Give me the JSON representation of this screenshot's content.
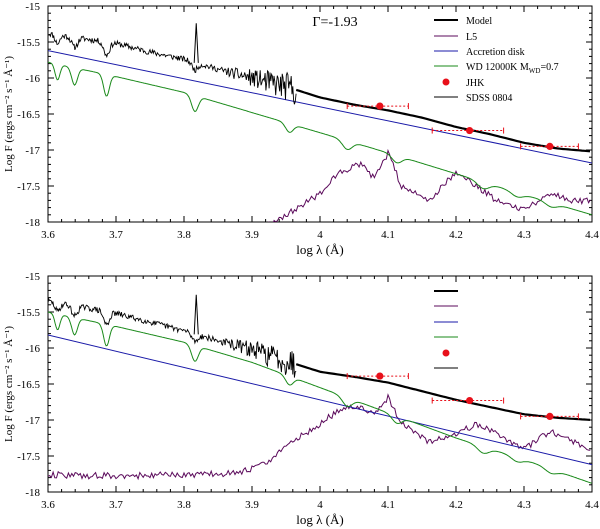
{
  "colors": {
    "model": "#000000",
    "l5": "#5b0a5b",
    "accretion": "#1a1aa8",
    "wd": "#1a8a1a",
    "jhk": "#e8101a",
    "sdss": "#000000",
    "errorbar": "#e8101a"
  },
  "chart_data": [
    {
      "type": "line",
      "panel": "top",
      "annotation": "Γ=-1.93",
      "xlabel": "log λ (Å)",
      "ylabel": "Log F (ergs cm⁻² s⁻¹ Å⁻¹)",
      "xlim": [
        3.6,
        4.4
      ],
      "ylim": [
        -18,
        -15
      ],
      "xticks": [
        "3.6",
        "3.7",
        "3.8",
        "3.9",
        "4",
        "4.1",
        "4.2",
        "4.3",
        "4.4"
      ],
      "yticks": [
        "-15",
        "-15.5",
        "-16",
        "-16.5",
        "-17",
        "-17.5",
        "-18"
      ],
      "legend_position": "top-right",
      "legend": [
        {
          "key": "model",
          "label": "Model"
        },
        {
          "key": "l5",
          "label": "L5"
        },
        {
          "key": "accretion",
          "label": "Accretion disk"
        },
        {
          "key": "wd",
          "label": "WD 12000K M",
          "sub": "WD",
          "suffix": "=0.7"
        },
        {
          "key": "jhk",
          "label": "JHK"
        },
        {
          "key": "sdss",
          "label": "SDSS 0804"
        }
      ],
      "series": {
        "accretion": {
          "name": "Accretion disk",
          "x": [
            3.6,
            4.4
          ],
          "y": [
            -15.62,
            -17.18
          ]
        },
        "wd": {
          "name": "WD 12000K",
          "x": [
            3.6,
            3.7,
            3.8,
            3.9,
            4.0,
            4.1,
            4.2,
            4.3,
            4.4
          ],
          "y": [
            -15.78,
            -15.98,
            -16.2,
            -16.48,
            -16.76,
            -17.04,
            -17.33,
            -17.62,
            -17.9
          ]
        },
        "model": {
          "name": "Model",
          "x": [
            3.6,
            3.65,
            3.7,
            3.75,
            3.8,
            3.85,
            3.9,
            3.95,
            3.97,
            4.0,
            4.05,
            4.1,
            4.15,
            4.2,
            4.25,
            4.3,
            4.35,
            4.4
          ],
          "y": [
            -15.38,
            -15.45,
            -15.52,
            -15.64,
            -15.74,
            -15.88,
            -16.0,
            -16.12,
            -16.18,
            -16.27,
            -16.37,
            -16.45,
            -16.55,
            -16.68,
            -16.78,
            -16.9,
            -16.98,
            -17.02
          ]
        },
        "l5": {
          "name": "L5",
          "x": [
            3.92,
            3.96,
            4.0,
            4.03,
            4.06,
            4.08,
            4.1,
            4.12,
            4.16,
            4.2,
            4.23,
            4.26,
            4.3,
            4.34,
            4.37,
            4.4
          ],
          "y": [
            -18.05,
            -17.85,
            -17.6,
            -17.3,
            -17.2,
            -17.4,
            -17.05,
            -17.5,
            -17.7,
            -17.3,
            -17.5,
            -17.7,
            -17.82,
            -17.6,
            -17.7,
            -17.7
          ]
        },
        "jhk": {
          "name": "JHK",
          "points": [
            {
              "x": 4.088,
              "y": -16.39,
              "xerr": [
                4.04,
                4.13
              ]
            },
            {
              "x": 4.22,
              "y": -16.73,
              "xerr": [
                4.165,
                4.27
              ]
            },
            {
              "x": 4.338,
              "y": -16.95,
              "xerr": [
                4.295,
                4.38
              ]
            }
          ]
        }
      }
    },
    {
      "type": "line",
      "panel": "bottom",
      "xlabel": "log λ (Å)",
      "ylabel": "Log F (ergs cm⁻² s⁻¹ Å⁻¹)",
      "xlim": [
        3.6,
        4.4
      ],
      "ylim": [
        -18,
        -15
      ],
      "xticks": [
        "3.6",
        "3.7",
        "3.8",
        "3.9",
        "4",
        "4.1",
        "4.2",
        "4.3",
        "4.4"
      ],
      "yticks": [
        "-15",
        "-15.5",
        "-16",
        "-16.5",
        "-17",
        "-17.5",
        "-18"
      ],
      "legend_position": "top-right",
      "legend": [
        {
          "key": "model"
        },
        {
          "key": "l5"
        },
        {
          "key": "accretion"
        },
        {
          "key": "wd"
        },
        {
          "key": "jhk"
        },
        {
          "key": "sdss"
        }
      ],
      "series": {
        "accretion": {
          "name": "Accretion disk",
          "x": [
            3.6,
            4.4
          ],
          "y": [
            -15.82,
            -17.62
          ]
        },
        "wd": {
          "name": "WD 12000K",
          "x": [
            3.6,
            3.7,
            3.8,
            3.9,
            4.0,
            4.1,
            4.2,
            4.3,
            4.4
          ],
          "y": [
            -15.5,
            -15.7,
            -15.92,
            -16.2,
            -16.55,
            -16.9,
            -17.25,
            -17.55,
            -17.88
          ]
        },
        "model": {
          "name": "Model",
          "x": [
            3.6,
            3.65,
            3.7,
            3.75,
            3.8,
            3.85,
            3.9,
            3.95,
            3.97,
            4.0,
            4.05,
            4.1,
            4.15,
            4.2,
            4.25,
            4.3,
            4.35,
            4.4
          ],
          "y": [
            -15.35,
            -15.43,
            -15.52,
            -15.64,
            -15.76,
            -15.9,
            -16.02,
            -16.18,
            -16.24,
            -16.33,
            -16.4,
            -16.48,
            -16.6,
            -16.72,
            -16.82,
            -16.92,
            -16.97,
            -17.0
          ]
        },
        "l5": {
          "name": "L5",
          "x": [
            3.6,
            3.7,
            3.8,
            3.88,
            3.92,
            3.96,
            4.0,
            4.03,
            4.06,
            4.08,
            4.1,
            4.12,
            4.16,
            4.2,
            4.23,
            4.26,
            4.3,
            4.34,
            4.37,
            4.4
          ],
          "y": [
            -17.76,
            -17.78,
            -17.76,
            -17.74,
            -17.6,
            -17.3,
            -17.05,
            -16.85,
            -16.8,
            -16.95,
            -16.68,
            -17.05,
            -17.3,
            -17.2,
            -17.05,
            -17.2,
            -17.4,
            -17.15,
            -17.3,
            -17.42
          ]
        },
        "jhk": {
          "name": "JHK",
          "points": [
            {
              "x": 4.088,
              "y": -16.39,
              "xerr": [
                4.04,
                4.13
              ]
            },
            {
              "x": 4.22,
              "y": -16.73,
              "xerr": [
                4.165,
                4.27
              ]
            },
            {
              "x": 4.338,
              "y": -16.95,
              "xerr": [
                4.295,
                4.38
              ]
            }
          ]
        }
      }
    }
  ]
}
